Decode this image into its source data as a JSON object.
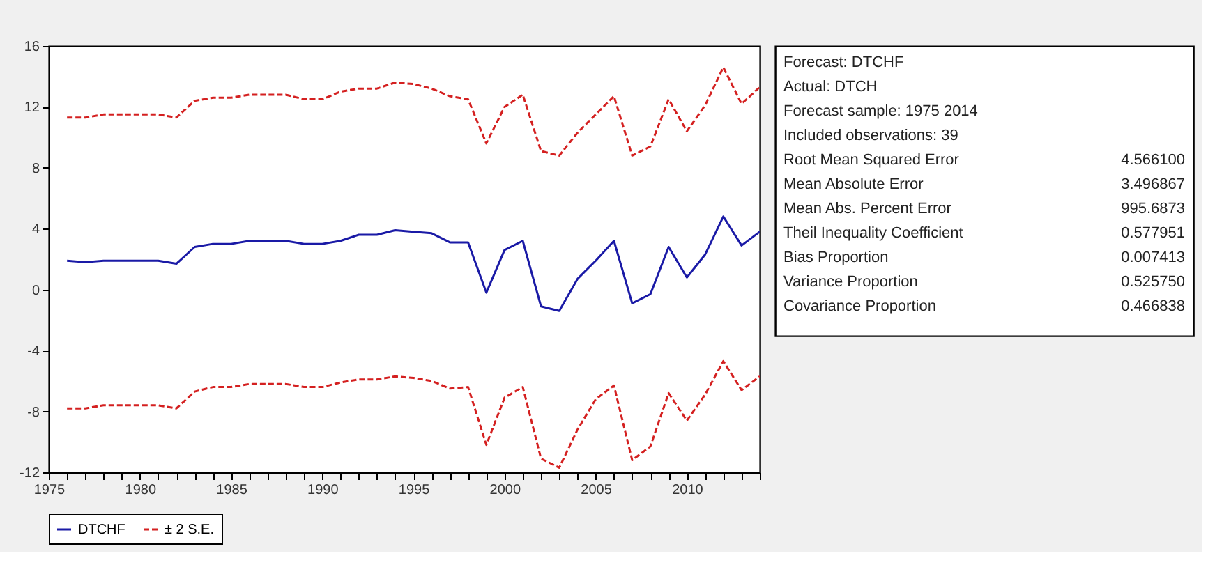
{
  "chart_data": [
    {
      "type": "line",
      "x": [
        1976,
        1977,
        1978,
        1979,
        1980,
        1981,
        1982,
        1983,
        1984,
        1985,
        1986,
        1987,
        1988,
        1989,
        1990,
        1991,
        1992,
        1993,
        1994,
        1995,
        1996,
        1997,
        1998,
        1999,
        2000,
        2001,
        2002,
        2003,
        2004,
        2005,
        2006,
        2007,
        2008,
        2009,
        2010,
        2011,
        2012,
        2013,
        2014
      ],
      "series": [
        {
          "name": "DTCHF",
          "color": "#1a1aa6",
          "line_style": "solid",
          "values": [
            1.9,
            1.8,
            1.9,
            1.9,
            1.9,
            1.9,
            1.7,
            2.8,
            3.0,
            3.0,
            3.2,
            3.2,
            3.2,
            3.0,
            3.0,
            3.2,
            3.6,
            3.6,
            3.9,
            3.8,
            3.7,
            3.1,
            3.1,
            -0.2,
            2.6,
            3.2,
            -1.1,
            -1.4,
            0.7,
            1.9,
            3.2,
            -0.9,
            -0.3,
            2.8,
            0.8,
            2.3,
            4.8,
            2.9,
            3.8
          ]
        },
        {
          "name": "± 2 S.E.",
          "color": "#d42020",
          "line_style": "dashed",
          "values": [
            11.3,
            11.3,
            11.5,
            11.5,
            11.5,
            11.5,
            11.3,
            12.4,
            12.6,
            12.6,
            12.8,
            12.8,
            12.8,
            12.5,
            12.5,
            13.0,
            13.2,
            13.2,
            13.6,
            13.5,
            13.2,
            12.7,
            12.5,
            9.6,
            12.0,
            12.8,
            9.1,
            8.8,
            10.3,
            11.5,
            12.7,
            8.8,
            9.4,
            12.5,
            10.4,
            12.1,
            14.6,
            12.2,
            13.3
          ]
        },
        {
          "color": "#d42020",
          "line_style": "dashed",
          "values": [
            -7.8,
            -7.8,
            -7.6,
            -7.6,
            -7.6,
            -7.6,
            -7.8,
            -6.7,
            -6.4,
            -6.4,
            -6.2,
            -6.2,
            -6.2,
            -6.4,
            -6.4,
            -6.1,
            -5.9,
            -5.9,
            -5.7,
            -5.8,
            -6.0,
            -6.5,
            -6.4,
            -10.2,
            -7.1,
            -6.4,
            -11.1,
            -11.7,
            -9.2,
            -7.2,
            -6.3,
            -11.2,
            -10.3,
            -6.8,
            -8.6,
            -6.9,
            -4.7,
            -6.6,
            -5.7
          ]
        }
      ],
      "xlim": [
        1975,
        2014
      ],
      "xticks": [
        1975,
        {
          "value": 1976,
          "label": null
        },
        {
          "value": 1977,
          "label": null
        },
        {
          "value": 1978,
          "label": null
        },
        {
          "value": 1979,
          "label": null
        },
        1980,
        {
          "value": 1981,
          "label": null
        },
        {
          "value": 1982,
          "label": null
        },
        {
          "value": 1983,
          "label": null
        },
        {
          "value": 1984,
          "label": null
        },
        1985,
        {
          "value": 1986,
          "label": null
        },
        {
          "value": 1987,
          "label": null
        },
        {
          "value": 1988,
          "label": null
        },
        {
          "value": 1989,
          "label": null
        },
        1990,
        {
          "value": 1991,
          "label": null
        },
        {
          "value": 1992,
          "label": null
        },
        {
          "value": 1993,
          "label": null
        },
        {
          "value": 1994,
          "label": null
        },
        1995,
        {
          "value": 1996,
          "label": null
        },
        {
          "value": 1997,
          "label": null
        },
        {
          "value": 1998,
          "label": null
        },
        {
          "value": 1999,
          "label": null
        },
        2000,
        {
          "value": 2001,
          "label": null
        },
        {
          "value": 2002,
          "label": null
        },
        {
          "value": 2003,
          "label": null
        },
        {
          "value": 2004,
          "label": null
        },
        2005,
        {
          "value": 2006,
          "label": null
        },
        {
          "value": 2007,
          "label": null
        },
        {
          "value": 2008,
          "label": null
        },
        {
          "value": 2009,
          "label": null
        },
        2010,
        {
          "value": 2011,
          "label": null
        },
        {
          "value": 2012,
          "label": null
        },
        {
          "value": 2013,
          "label": null
        },
        {
          "value": 2014,
          "label": null
        }
      ],
      "ylim": [
        -12,
        16
      ],
      "yticks": [
        -12,
        -8,
        -4,
        0,
        4,
        8,
        12,
        16
      ],
      "grid": false,
      "legend": "bottom",
      "marker": "none"
    },
    {
      "type": "other",
      "annotations": [
        "Forecast: DTCHF",
        "Actual: DTCH",
        "Forecast sample: 1975 2014",
        "Included observations: 39",
        "Root Mean Squared Error",
        "4.566100",
        "Mean Absolute Error",
        "3.496867",
        "Mean Abs. Percent Error",
        "995.6873",
        "Theil Inequality Coefficient",
        "0.577951",
        "Bias Proportion",
        "0.007413",
        "Variance Proportion",
        "0.525750",
        "Covariance Proportion",
        "0.466838"
      ]
    }
  ]
}
